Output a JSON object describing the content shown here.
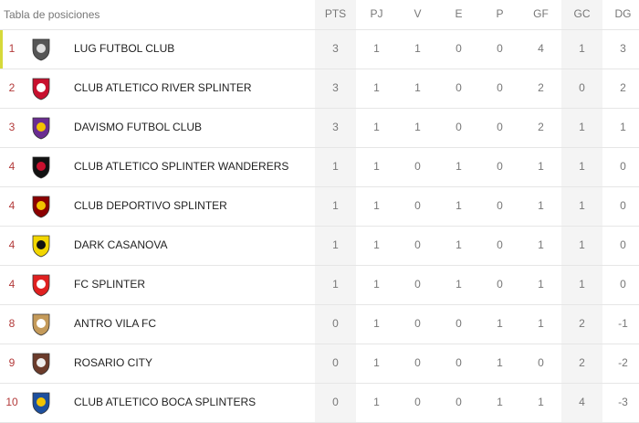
{
  "header": {
    "title": "Tabla de posiciones",
    "columns": [
      "PTS",
      "PJ",
      "V",
      "E",
      "P",
      "GF",
      "GC",
      "DG"
    ]
  },
  "table": {
    "rows": [
      {
        "pos": 1,
        "team": "LUG FUTBOL CLUB",
        "stats": [
          3,
          1,
          1,
          0,
          0,
          4,
          1,
          3
        ]
      },
      {
        "pos": 2,
        "team": "CLUB ATLETICO RIVER SPLINTER",
        "stats": [
          3,
          1,
          1,
          0,
          0,
          2,
          0,
          2
        ]
      },
      {
        "pos": 3,
        "team": "DAVISMO FUTBOL CLUB",
        "stats": [
          3,
          1,
          1,
          0,
          0,
          2,
          1,
          1
        ]
      },
      {
        "pos": 4,
        "team": "CLUB ATLETICO SPLINTER WANDERERS",
        "stats": [
          1,
          1,
          0,
          1,
          0,
          1,
          1,
          0
        ]
      },
      {
        "pos": 4,
        "team": "CLUB DEPORTIVO SPLINTER",
        "stats": [
          1,
          1,
          0,
          1,
          0,
          1,
          1,
          0
        ]
      },
      {
        "pos": 4,
        "team": "DARK CASANOVA",
        "stats": [
          1,
          1,
          0,
          1,
          0,
          1,
          1,
          0
        ]
      },
      {
        "pos": 4,
        "team": "FC SPLINTER",
        "stats": [
          1,
          1,
          0,
          1,
          0,
          1,
          1,
          0
        ]
      },
      {
        "pos": 8,
        "team": "ANTRO VILA FC",
        "stats": [
          0,
          1,
          0,
          0,
          1,
          1,
          2,
          -1
        ]
      },
      {
        "pos": 9,
        "team": "ROSARIO CITY",
        "stats": [
          0,
          1,
          0,
          0,
          1,
          0,
          2,
          -2
        ]
      },
      {
        "pos": 10,
        "team": "CLUB ATLETICO BOCA SPLINTERS",
        "stats": [
          0,
          1,
          0,
          0,
          1,
          1,
          4,
          -3
        ]
      }
    ]
  }
}
